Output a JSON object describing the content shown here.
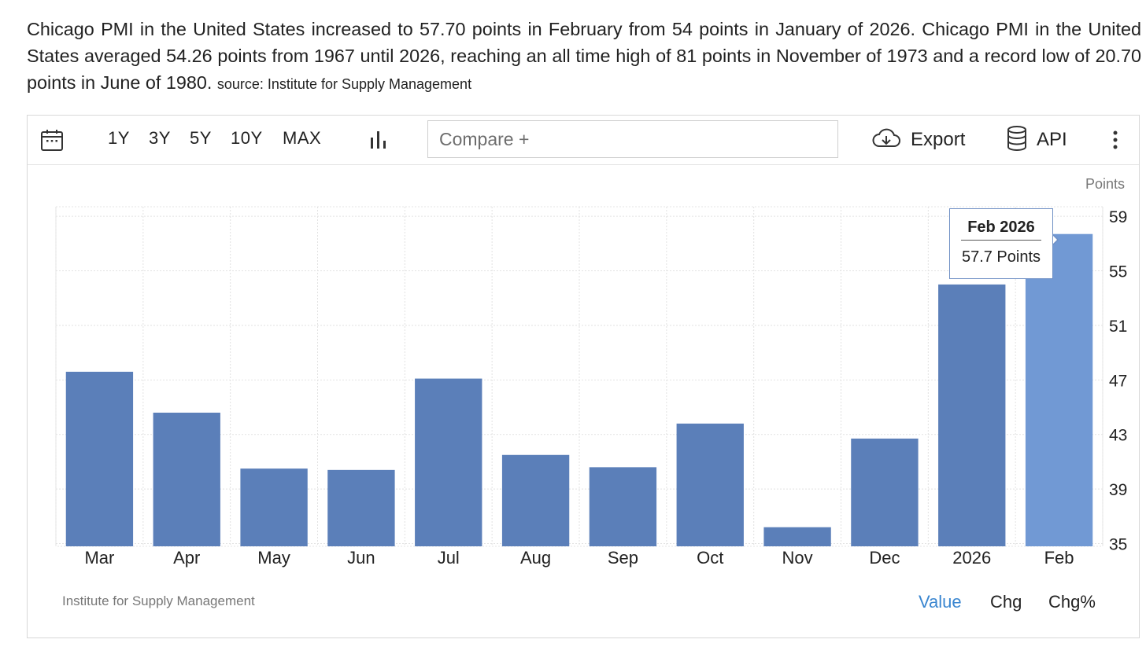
{
  "summary": {
    "text": "Chicago PMI in the United States increased to 57.70 points in February from 54 points in January of 2026. Chicago PMI in the United States averaged 54.26 points from 1967 until 2026, reaching an all time high of 81 points in November of 1973 and a record low of 20.70 points in June of 1980.",
    "source": "source: Institute for Supply Management"
  },
  "toolbar": {
    "ranges": [
      "1Y",
      "3Y",
      "5Y",
      "10Y",
      "MAX"
    ],
    "compare_placeholder": "Compare +",
    "export_label": "Export",
    "api_label": "API",
    "icons": {
      "calendar": "calendar-icon",
      "chart_type": "bar-chart-icon",
      "export": "cloud-download-icon",
      "api": "database-icon",
      "more": "more-vertical-icon"
    }
  },
  "tooltip": {
    "title": "Feb 2026",
    "value": "57.7 Points"
  },
  "footer": {
    "source": "Institute for Supply Management",
    "views": [
      "Value",
      "Chg",
      "Chg%"
    ],
    "active_view": "Value"
  },
  "colors": {
    "bar": "#5b7fb9",
    "bar_highlight": "#7199d4",
    "active_link": "#3a86d0"
  },
  "chart_data": {
    "type": "bar",
    "unit_label": "Points",
    "categories": [
      "Mar",
      "Apr",
      "May",
      "Jun",
      "Jul",
      "Aug",
      "Sep",
      "Oct",
      "Nov",
      "Dec",
      "2026",
      "Feb"
    ],
    "values": [
      47.6,
      44.6,
      40.5,
      40.4,
      47.1,
      41.5,
      40.6,
      43.8,
      36.2,
      42.7,
      54.0,
      57.7
    ],
    "highlighted_index": 11,
    "ylim": [
      34.8,
      59.7
    ],
    "yticks": [
      35,
      39,
      43,
      47,
      51,
      55,
      59
    ],
    "grid": true,
    "y_axis_side": "right"
  }
}
